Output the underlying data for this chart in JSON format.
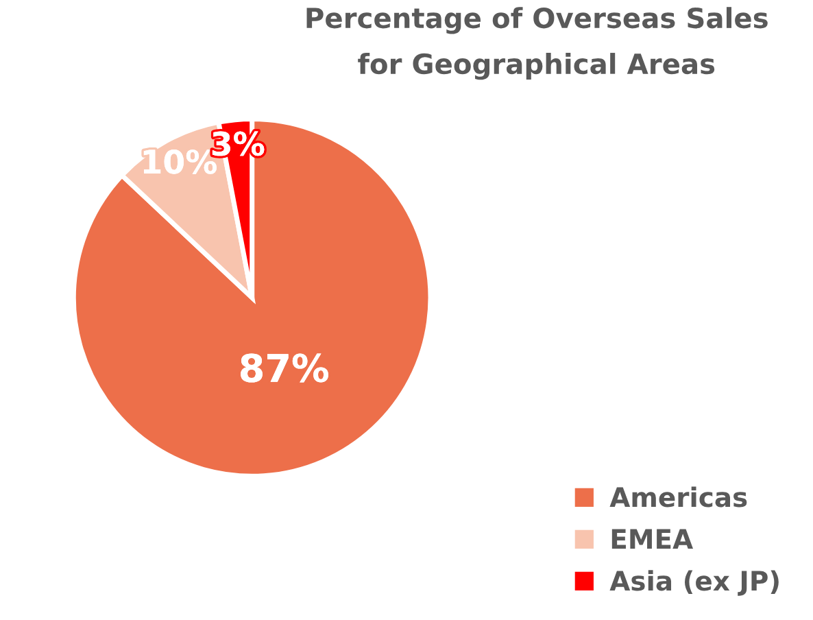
{
  "chart_data": {
    "type": "pie",
    "title": "Percentage of Overseas Sales\nfor Geographical Areas",
    "categories": [
      "Americas",
      "EMEA",
      "Asia (ex JP)"
    ],
    "values": [
      87,
      10,
      3
    ],
    "value_labels": [
      "87%",
      "10%",
      "3%"
    ],
    "colors": [
      "#ed6f4a",
      "#f8c4ae",
      "#ff0000"
    ],
    "legend": "bottom right"
  }
}
